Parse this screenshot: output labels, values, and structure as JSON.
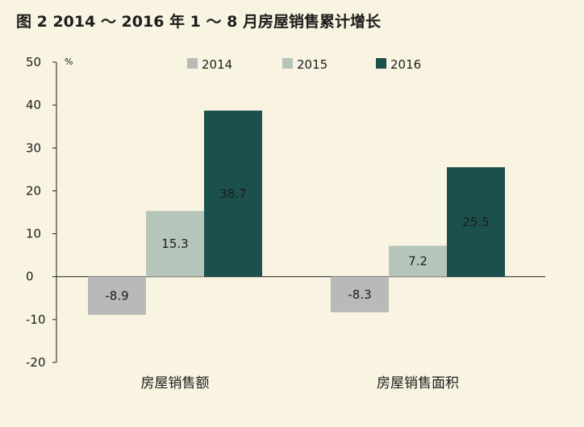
{
  "chart_data": {
    "type": "bar",
    "title": "图 2  2014 ～ 2016 年 1 ～ 8 月房屋销售累计增长",
    "ylabel": "%",
    "xlabel": "",
    "ylim": [
      -20,
      50
    ],
    "yticks": [
      50,
      40,
      30,
      20,
      10,
      0,
      -10,
      -20
    ],
    "categories": [
      "房屋销售额",
      "房屋销售面积"
    ],
    "series": [
      {
        "name": "2014",
        "color": "#b7bab6",
        "values": [
          -8.9,
          -8.3
        ]
      },
      {
        "name": "2015",
        "color": "#b6c5ba",
        "values": [
          15.3,
          7.2
        ]
      },
      {
        "name": "2016",
        "color": "#1c504c",
        "values": [
          38.7,
          25.5
        ]
      }
    ],
    "data_labels": [
      [
        "-8.9",
        "15.3",
        "38.7"
      ],
      [
        "-8.3",
        "7.2",
        "25.5"
      ]
    ],
    "legend_position": "top",
    "grid": false
  }
}
